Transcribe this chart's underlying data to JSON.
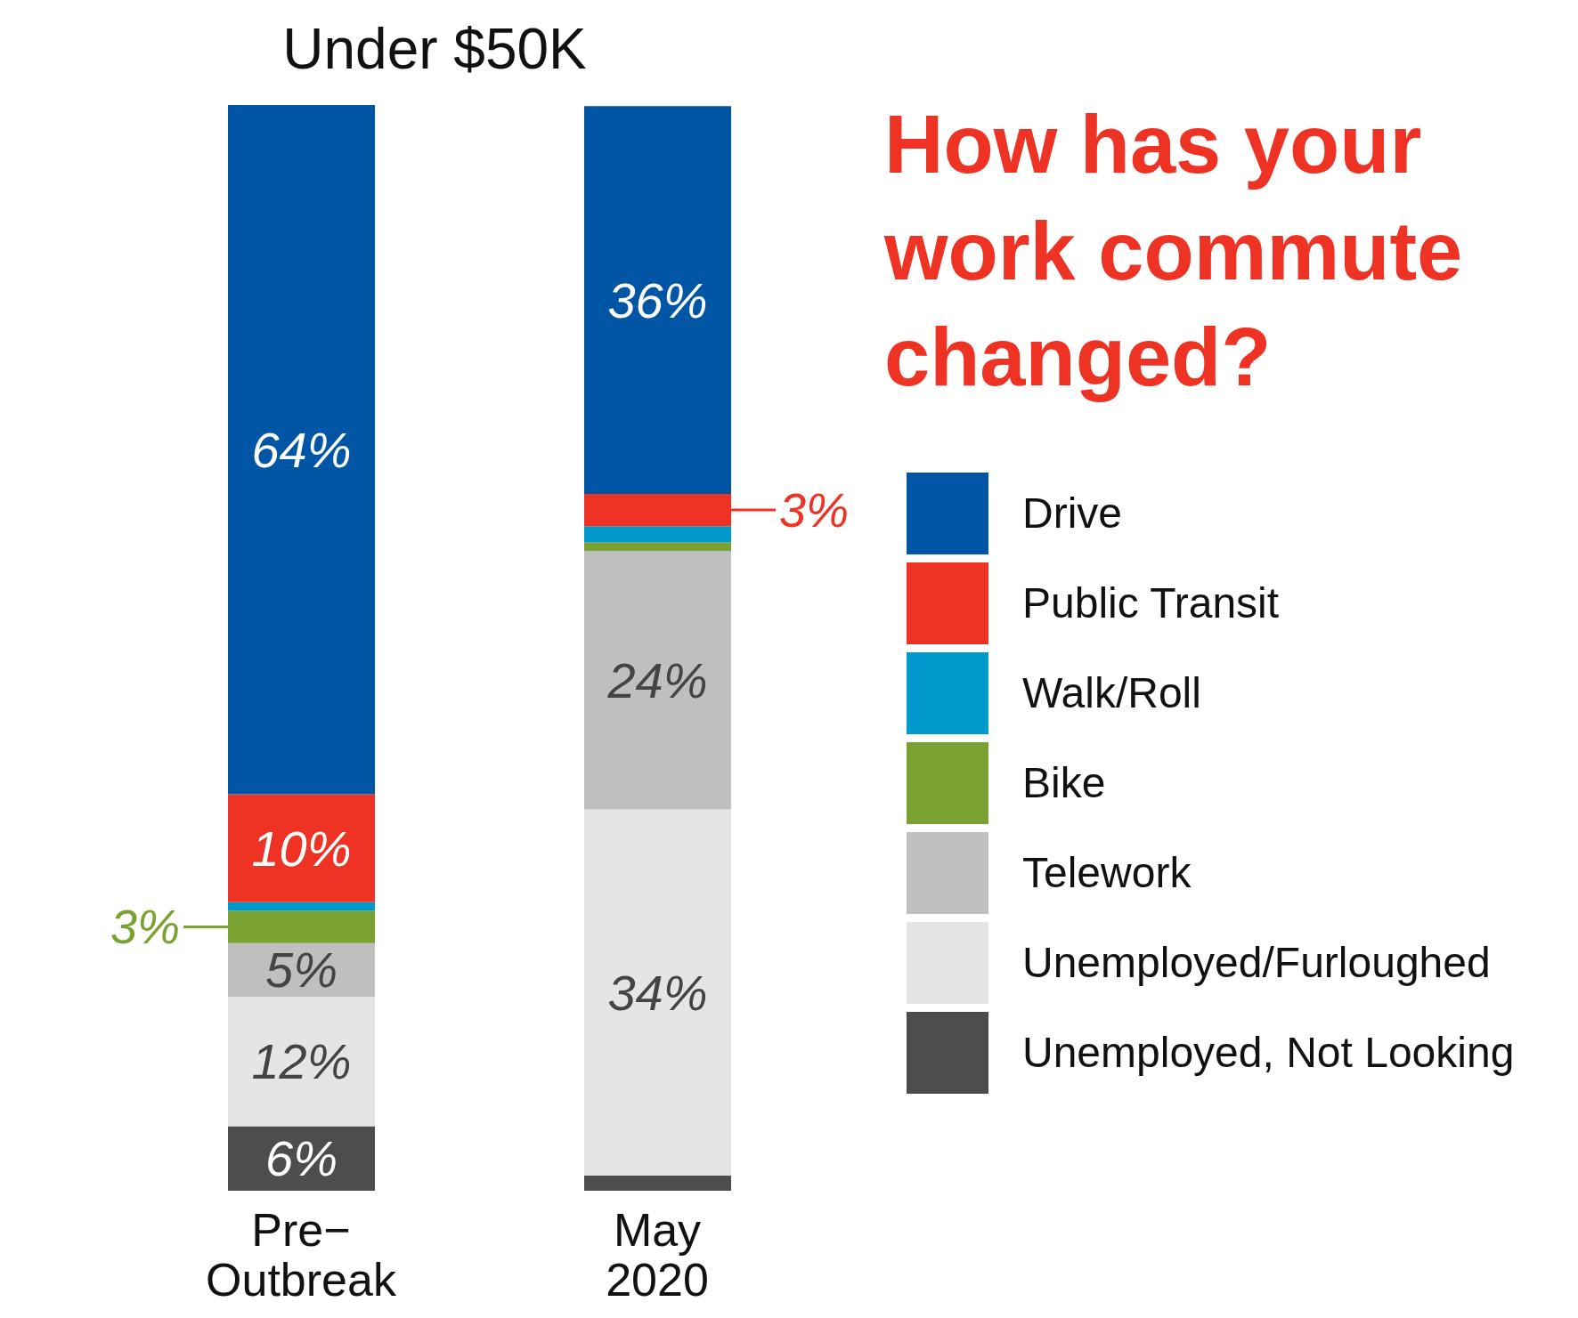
{
  "chart_data": {
    "type": "bar",
    "stacked": true,
    "title": "How has your work commute changed?",
    "subtitle": "Under $50K",
    "categories": [
      "Pre−Outbreak",
      "May 2020"
    ],
    "legend": "right",
    "tick_labels": "x",
    "series": [
      {
        "name": "Unemployed, Not Looking",
        "color": "#4d4d4d",
        "values": [
          6,
          1.4
        ],
        "value_labels": [
          "6%",
          null
        ]
      },
      {
        "name": "Unemployed/Furloughed",
        "color": "#e5e5e5",
        "values": [
          12,
          34
        ],
        "value_labels": [
          "12%",
          "34%"
        ]
      },
      {
        "name": "Telework",
        "color": "#bfbfbf",
        "values": [
          5,
          24
        ],
        "value_labels": [
          "5%",
          "24%"
        ]
      },
      {
        "name": "Bike",
        "color": "#7aa232",
        "values": [
          3,
          0.8
        ],
        "value_labels": [
          "3%",
          null
        ]
      },
      {
        "name": "Walk/Roll",
        "color": "#0099cc",
        "values": [
          0.8,
          1.5
        ],
        "value_labels": [
          null,
          null
        ]
      },
      {
        "name": "Public Transit",
        "color": "#ee3224",
        "values": [
          10,
          3
        ],
        "value_labels": [
          "10%",
          "3%"
        ]
      },
      {
        "name": "Drive",
        "color": "#0055a5",
        "values": [
          64,
          36
        ],
        "value_labels": [
          "64%",
          "36%"
        ]
      }
    ]
  }
}
